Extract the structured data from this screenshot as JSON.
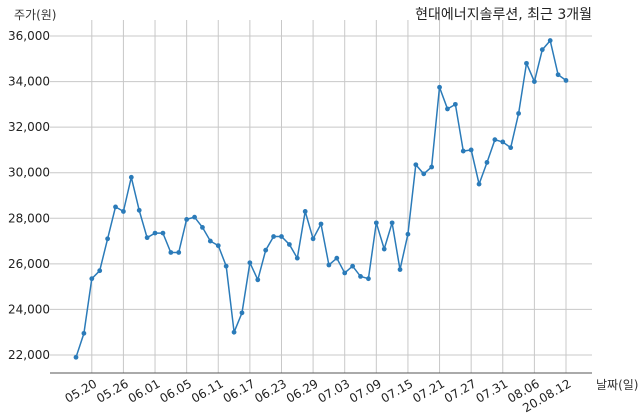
{
  "chart_data": {
    "type": "line",
    "title": "현대에너지솔루션, 최근 3개월",
    "ylabel": "주가(원)",
    "xlabel": "날짜(일)",
    "ylim": [
      21000,
      36700
    ],
    "yticks": [
      22000,
      24000,
      26000,
      28000,
      30000,
      32000,
      34000,
      36000
    ],
    "ytick_labels": [
      "22,000",
      "24,000",
      "26,000",
      "28,000",
      "30,000",
      "32,000",
      "34,000",
      "36,000"
    ],
    "xtick_labels": [
      "05.20",
      "05.26",
      "06.01",
      "06.05",
      "06.11",
      "06.17",
      "06.23",
      "06.29",
      "07.03",
      "07.09",
      "07.15",
      "07.21",
      "07.27",
      "07.31",
      "08.06",
      "20.08.12"
    ],
    "xtick_indices": [
      2,
      6,
      10,
      14,
      18,
      22,
      26,
      30,
      34,
      38,
      42,
      46,
      50,
      54,
      58,
      62
    ],
    "grid": true,
    "color": "#2b7bb9",
    "series": [
      {
        "values": [
          21900,
          22950,
          25350,
          25700,
          27100,
          28500,
          28300,
          29800,
          28350,
          27150,
          27350,
          27350,
          26500,
          26500,
          27950,
          28050,
          27600,
          27000,
          26800,
          25900,
          23000,
          23850,
          26050,
          25300,
          26600,
          27200,
          27200,
          26850,
          26250,
          28300,
          27100,
          27750,
          25950,
          26250,
          25600,
          25900,
          25450,
          25350,
          27800,
          26650,
          27800,
          25750,
          27300,
          30350,
          29950,
          30250,
          33750,
          32800,
          33000,
          30950,
          31000,
          29500,
          30450,
          31450,
          31350,
          31100,
          32600,
          34800,
          34000,
          35400,
          35800,
          34300,
          34050
        ]
      }
    ]
  }
}
